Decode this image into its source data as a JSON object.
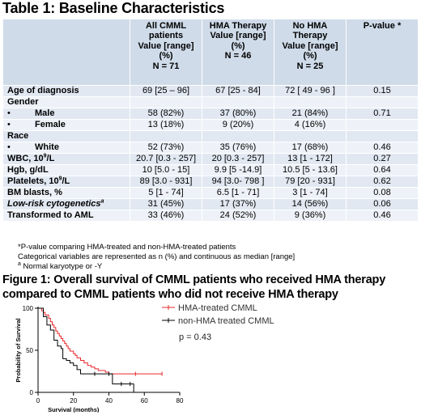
{
  "table": {
    "title": "Table 1: Baseline Characteristics",
    "headers": [
      {
        "lines": []
      },
      {
        "lines": [
          "All CMML",
          "patients",
          "Value [range]",
          "(%)",
          "N = 71"
        ]
      },
      {
        "lines": [
          "HMA Therapy",
          "Value [range]",
          "(%)",
          "N = 46"
        ]
      },
      {
        "lines": [
          "No HMA",
          "Therapy",
          "Value [range]",
          "(%)",
          "N = 25"
        ]
      },
      {
        "lines": [
          "P-value *"
        ]
      }
    ],
    "rows": [
      {
        "label": "Age of diagnosis",
        "values": [
          "69 [25 – 96]",
          "67 [25 - 84]",
          "72 [ 49 - 96 ]",
          "0.15"
        ]
      },
      {
        "label": "Gender",
        "values": [
          "",
          "",
          "",
          ""
        ]
      },
      {
        "bullet": "•",
        "label": "Male",
        "values": [
          "58 (82%)",
          "37 (80%)",
          "21 (84%)",
          "0.71"
        ]
      },
      {
        "bullet": "•",
        "label": "Female",
        "values": [
          "13 (18%)",
          "9 (20%)",
          "4 (16%)",
          ""
        ]
      },
      {
        "label": "Race",
        "values": [
          "",
          "",
          "",
          ""
        ]
      },
      {
        "bullet": "•",
        "label": "White",
        "values": [
          "52 (73%)",
          "35 (76%)",
          "17 (68%)",
          "0.46"
        ]
      },
      {
        "label": "WBC, 10",
        "sup": "9",
        "label_after": "/L",
        "values": [
          "20.7 [0.3 - 257]",
          "20 [0.3 - 257]",
          "13 [1 - 172]",
          "0.27"
        ]
      },
      {
        "label": "Hgb, g/dL",
        "values": [
          "10 [5.0 - 15]",
          "9.9 [5 -14.9]",
          "10.5 [5 - 13.6]",
          "0.64"
        ]
      },
      {
        "label": "Platelets, 10",
        "sup": "9",
        "label_after": "/L",
        "values": [
          "89 [3.0 - 931]",
          "94 [3.0- 798 ]",
          "79 [20 - 931]",
          "0.62"
        ]
      },
      {
        "label": "BM blasts, %",
        "values": [
          "5 [1 - 74]",
          "6.5 [1 - 71]",
          "3 [1 - 74]",
          "0.08"
        ]
      },
      {
        "label": "Low-risk cytogenetics",
        "sup": "a",
        "italic": true,
        "values": [
          "31 (45%)",
          "17 (37%)",
          "14 (56%)",
          "0.06"
        ]
      },
      {
        "label": "Transformed to AML",
        "values": [
          "33 (46%)",
          "24 (52%)",
          "9 (36%)",
          "0.46"
        ]
      }
    ],
    "notes": [
      "*P-value comparing HMA-treated and non-HMA-treated patients",
      "Categorical variables are represented as n (%) and continuous as median [range]",
      "Normal karyotype or -Y"
    ],
    "note_marker": "a"
  },
  "figure": {
    "title": "Figure 1: Overall survival of CMML patients who received HMA therapy compared to CMML patients who did not receive HMA therapy"
  },
  "chart_data": {
    "type": "line",
    "xlabel": "Survival (months)",
    "ylabel": "Probability of Survival",
    "xlim": [
      0,
      80
    ],
    "ylim": [
      0,
      100
    ],
    "xticks": [
      "0",
      "20",
      "40",
      "60",
      "80"
    ],
    "yticks": [
      "0",
      "50",
      "100"
    ],
    "grid": false,
    "legend_position": "top-right",
    "annotation": "p = 0.43",
    "colors": {
      "hma": "#e8272b",
      "non_hma": "#000000"
    },
    "series": [
      {
        "name": "HMA-treated CMML",
        "step": true,
        "x": [
          0,
          2,
          3,
          4,
          6,
          7,
          8,
          9,
          10,
          11,
          12,
          13,
          14,
          15,
          16,
          17,
          18,
          20,
          21,
          22,
          24,
          26,
          28,
          30,
          32,
          34,
          38,
          40,
          70
        ],
        "y": [
          100,
          97,
          95,
          92,
          88,
          84,
          80,
          77,
          73,
          70,
          67,
          64,
          61,
          58,
          55,
          52,
          49,
          46,
          44,
          41,
          38,
          35,
          32,
          30,
          28,
          26,
          24,
          22,
          22
        ]
      },
      {
        "name": "non-HMA treated CMML",
        "step": true,
        "x": [
          0,
          3,
          5,
          7,
          9,
          11,
          13,
          14,
          16,
          18,
          20,
          22,
          24,
          40,
          42,
          52,
          54
        ],
        "y": [
          100,
          90,
          80,
          74,
          62,
          55,
          52,
          40,
          38,
          35,
          32,
          27,
          22,
          22,
          10,
          10,
          0
        ]
      }
    ]
  }
}
